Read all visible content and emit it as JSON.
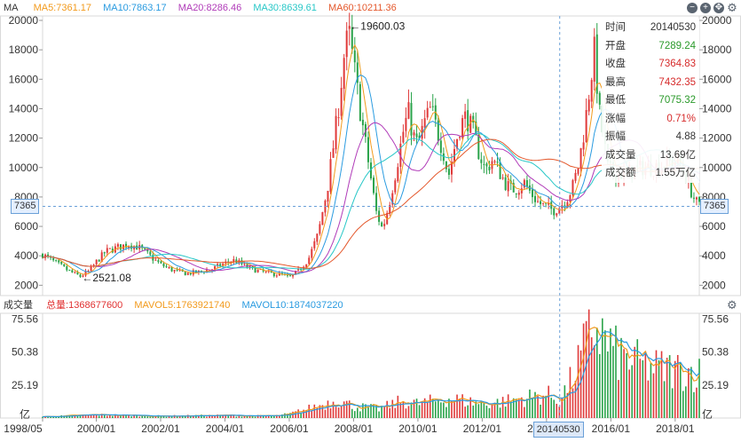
{
  "legend": {
    "label": "MA",
    "items": [
      {
        "text": "MA5:7361.17",
        "color": "#f29a1c"
      },
      {
        "text": "MA10:7863.17",
        "color": "#2a9be0"
      },
      {
        "text": "MA20:8286.46",
        "color": "#b03ab8"
      },
      {
        "text": "MA30:8639.61",
        "color": "#27c7c7"
      },
      {
        "text": "MA60:10211.36",
        "color": "#e4582c"
      }
    ]
  },
  "volume_legend": {
    "label": "成交量",
    "items": [
      {
        "text": "总量:1368677600",
        "color": "#e03030"
      },
      {
        "text": "MAVOL5:1763921740",
        "color": "#f29a1c"
      },
      {
        "text": "MAVOL10:1874037220",
        "color": "#2a9be0"
      }
    ]
  },
  "controls": [
    "−",
    "+",
    "✥"
  ],
  "info_panel": [
    {
      "label": "时间",
      "value": "20140530",
      "color": "#333333"
    },
    {
      "label": "开盘",
      "value": "7289.24",
      "color": "#2b9a2b"
    },
    {
      "label": "收盘",
      "value": "7364.83",
      "color": "#d62b2b"
    },
    {
      "label": "最高",
      "value": "7432.35",
      "color": "#d62b2b"
    },
    {
      "label": "最低",
      "value": "7075.32",
      "color": "#2b9a2b"
    },
    {
      "label": "涨幅",
      "value": "0.71%",
      "color": "#d62b2b"
    },
    {
      "label": "振幅",
      "value": "4.88",
      "color": "#333333"
    },
    {
      "label": "成交量",
      "value": "13.69亿",
      "color": "#333333"
    },
    {
      "label": "成交额",
      "value": "1.55万亿",
      "color": "#333333"
    }
  ],
  "crosshair": {
    "price_label": "7365",
    "price_value": 7365,
    "date_label": "20140530",
    "date_value": 2014.41
  },
  "chart_data": [
    {
      "type": "candlestick",
      "title": "MA",
      "y_ticks": [
        2000,
        4000,
        6000,
        8000,
        10000,
        12000,
        14000,
        16000,
        18000,
        20000
      ],
      "y_tick_labels": [
        "2000",
        "4000",
        "6000",
        "8000",
        "10000",
        "12000",
        "14000",
        "16000",
        "18000",
        "20000"
      ],
      "ylim": [
        1300,
        20300
      ],
      "x_tick_labels": [
        "1998/05",
        "2000/01",
        "2002/01",
        "2004/01",
        "2006/01",
        "2008/01",
        "2010/01",
        "2012/01",
        "2014/01",
        "2016/01",
        "2018/01"
      ],
      "x_tick_values": [
        1998.33,
        2000.0,
        2002.0,
        2004.0,
        2006.0,
        2008.0,
        2010.0,
        2012.0,
        2014.0,
        2016.0,
        2018.0
      ],
      "xlim": [
        1998.33,
        2018.75
      ],
      "annotations": [
        {
          "text": "19600.03",
          "x": 2007.83,
          "y": 19600.03
        },
        {
          "text": "2521.08",
          "x": 1999.5,
          "y": 2521.08
        }
      ],
      "close_path": [
        [
          1998.33,
          4100
        ],
        [
          1998.6,
          3700
        ],
        [
          1998.9,
          3300
        ],
        [
          1999.2,
          2900
        ],
        [
          1999.5,
          2600
        ],
        [
          1999.8,
          3000
        ],
        [
          2000.0,
          3600
        ],
        [
          2000.3,
          4300
        ],
        [
          2000.7,
          4600
        ],
        [
          2001.0,
          4800
        ],
        [
          2001.3,
          4600
        ],
        [
          2001.6,
          4100
        ],
        [
          2002.0,
          3400
        ],
        [
          2002.4,
          3000
        ],
        [
          2002.8,
          2800
        ],
        [
          2003.2,
          2900
        ],
        [
          2003.6,
          3100
        ],
        [
          2004.0,
          3500
        ],
        [
          2004.3,
          3700
        ],
        [
          2004.7,
          3200
        ],
        [
          2005.0,
          3000
        ],
        [
          2005.4,
          2800
        ],
        [
          2005.8,
          2700
        ],
        [
          2006.0,
          2500
        ],
        [
          2006.3,
          3000
        ],
        [
          2006.6,
          3800
        ],
        [
          2006.9,
          5500
        ],
        [
          2007.2,
          8800
        ],
        [
          2007.5,
          13500
        ],
        [
          2007.7,
          17500
        ],
        [
          2007.85,
          19200
        ],
        [
          2008.0,
          17000
        ],
        [
          2008.2,
          14000
        ],
        [
          2008.45,
          10500
        ],
        [
          2008.7,
          7000
        ],
        [
          2008.9,
          5800
        ],
        [
          2009.1,
          7500
        ],
        [
          2009.35,
          10200
        ],
        [
          2009.55,
          12500
        ],
        [
          2009.7,
          13800
        ],
        [
          2009.85,
          12200
        ],
        [
          2010.0,
          11500
        ],
        [
          2010.2,
          13000
        ],
        [
          2010.4,
          14000
        ],
        [
          2010.6,
          12500
        ],
        [
          2010.8,
          11000
        ],
        [
          2010.95,
          9400
        ],
        [
          2011.1,
          11000
        ],
        [
          2011.3,
          12800
        ],
        [
          2011.5,
          13500
        ],
        [
          2011.7,
          12500
        ],
        [
          2011.9,
          11000
        ],
        [
          2012.1,
          9800
        ],
        [
          2012.3,
          10500
        ],
        [
          2012.5,
          9900
        ],
        [
          2012.7,
          9000
        ],
        [
          2012.9,
          8500
        ],
        [
          2013.1,
          8600
        ],
        [
          2013.3,
          9000
        ],
        [
          2013.5,
          8300
        ],
        [
          2013.75,
          7600
        ],
        [
          2014.0,
          7300
        ],
        [
          2014.2,
          7100
        ],
        [
          2014.41,
          7365
        ],
        [
          2014.6,
          7800
        ],
        [
          2014.8,
          8600
        ],
        [
          2015.0,
          10200
        ],
        [
          2015.2,
          13000
        ],
        [
          2015.4,
          16500
        ],
        [
          2015.5,
          18100
        ],
        [
          2015.62,
          14000
        ],
        [
          2015.75,
          12300
        ],
        [
          2015.9,
          10000
        ],
        [
          2016.1,
          9500
        ],
        [
          2016.4,
          9600
        ],
        [
          2016.7,
          9800
        ],
        [
          2017.0,
          10000
        ],
        [
          2017.3,
          10000
        ],
        [
          2017.6,
          10200
        ],
        [
          2017.9,
          10400
        ],
        [
          2018.1,
          10500
        ],
        [
          2018.3,
          9600
        ],
        [
          2018.5,
          8400
        ],
        [
          2018.65,
          7600
        ],
        [
          2018.75,
          7365
        ]
      ],
      "moving_averages": [
        {
          "name": "MA5",
          "color": "#f29a1c",
          "last": 7361.17
        },
        {
          "name": "MA10",
          "color": "#2a9be0",
          "last": 7863.17
        },
        {
          "name": "MA20",
          "color": "#b03ab8",
          "last": 8286.46
        },
        {
          "name": "MA30",
          "color": "#27c7c7",
          "last": 8639.61
        },
        {
          "name": "MA60",
          "color": "#e4582c",
          "last": 10211.36
        }
      ]
    },
    {
      "type": "bar",
      "title": "成交量",
      "unit": "亿",
      "y_ticks": [
        25.19,
        50.38,
        75.56
      ],
      "y_tick_labels": [
        "25.19",
        "50.38",
        "75.56"
      ],
      "ylim": [
        0,
        80
      ],
      "volume_path": [
        [
          1998.33,
          1
        ],
        [
          2000.0,
          2.5
        ],
        [
          2002.0,
          1.5
        ],
        [
          2004.0,
          2
        ],
        [
          2005.5,
          1.5
        ],
        [
          2006.0,
          3
        ],
        [
          2007.0,
          10
        ],
        [
          2007.5,
          14
        ],
        [
          2008.0,
          9
        ],
        [
          2008.8,
          7
        ],
        [
          2009.5,
          13
        ],
        [
          2010.0,
          11
        ],
        [
          2010.5,
          13
        ],
        [
          2011.0,
          15
        ],
        [
          2011.5,
          13
        ],
        [
          2012.0,
          11
        ],
        [
          2012.5,
          12
        ],
        [
          2013.0,
          14
        ],
        [
          2013.5,
          16
        ],
        [
          2014.0,
          18
        ],
        [
          2014.41,
          13.69
        ],
        [
          2014.8,
          30
        ],
        [
          2015.2,
          55
        ],
        [
          2015.5,
          72
        ],
        [
          2015.8,
          60
        ],
        [
          2016.2,
          48
        ],
        [
          2016.8,
          42
        ],
        [
          2017.4,
          38
        ],
        [
          2018.0,
          37
        ],
        [
          2018.5,
          36
        ],
        [
          2018.75,
          34
        ]
      ],
      "series": [
        {
          "name": "MAVOL5",
          "color": "#f29a1c"
        },
        {
          "name": "MAVOL10",
          "color": "#2a9be0"
        }
      ]
    }
  ]
}
